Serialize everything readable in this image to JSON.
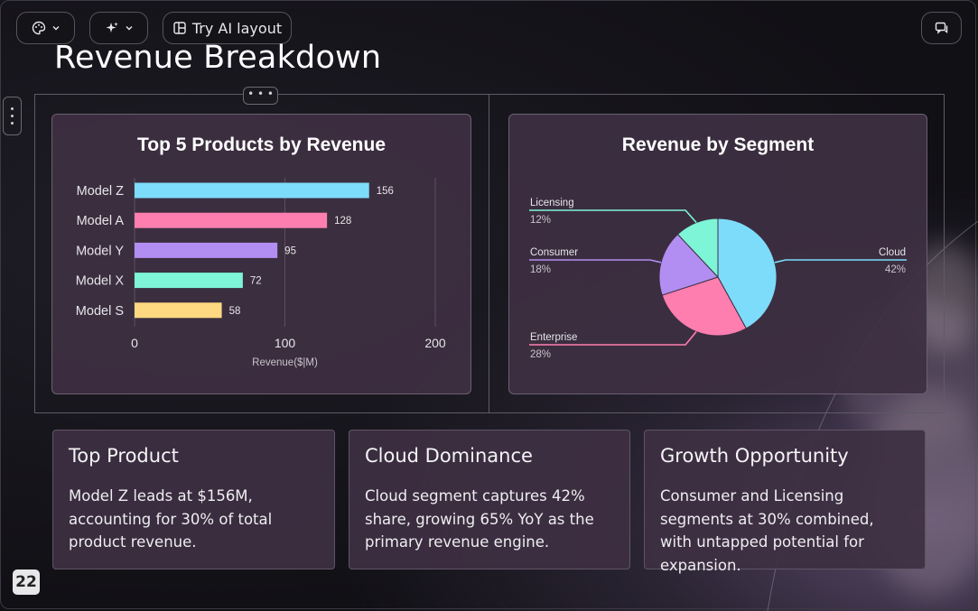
{
  "toolbar": {
    "theme_icon": "palette-icon",
    "ai_icon": "sparkle-icon",
    "ai_layout_label": "Try AI layout",
    "comment_icon": "comment-icon"
  },
  "slide": {
    "title": "Revenue Breakdown",
    "page_number": "22"
  },
  "chart_data": [
    {
      "type": "bar",
      "title": "Top 5 Products by Revenue",
      "orientation": "horizontal",
      "categories": [
        "Model Z",
        "Model A",
        "Model Y",
        "Model X",
        "Model S"
      ],
      "values": [
        156,
        128,
        95,
        72,
        58
      ],
      "colors": [
        "#7ddcfa",
        "#ff7eb0",
        "#b28ef2",
        "#7df5d6",
        "#ffd981"
      ],
      "xlabel": "Revenue($|M)",
      "xlim": [
        0,
        200
      ],
      "xticks": [
        "0",
        "100",
        "200"
      ]
    },
    {
      "type": "pie",
      "title": "Revenue by Segment",
      "slices": [
        {
          "label": "Cloud",
          "pct": "42%",
          "value": 42,
          "color": "#7ddcfa"
        },
        {
          "label": "Enterprise",
          "pct": "28%",
          "value": 28,
          "color": "#ff7eb0"
        },
        {
          "label": "Consumer",
          "pct": "18%",
          "value": 18,
          "color": "#b28ef2"
        },
        {
          "label": "Licensing",
          "pct": "12%",
          "value": 12,
          "color": "#7df5d6"
        }
      ]
    }
  ],
  "insights": [
    {
      "heading": "Top Product",
      "body": "Model Z leads at $156M, accounting for 30% of total product revenue."
    },
    {
      "heading": "Cloud Dominance",
      "body": "Cloud segment captures 42% share, growing 65% YoY as the primary revenue engine."
    },
    {
      "heading": "Growth Opportunity",
      "body": "Consumer and Licensing segments at 30% combined, with untapped potential for expansion."
    }
  ]
}
